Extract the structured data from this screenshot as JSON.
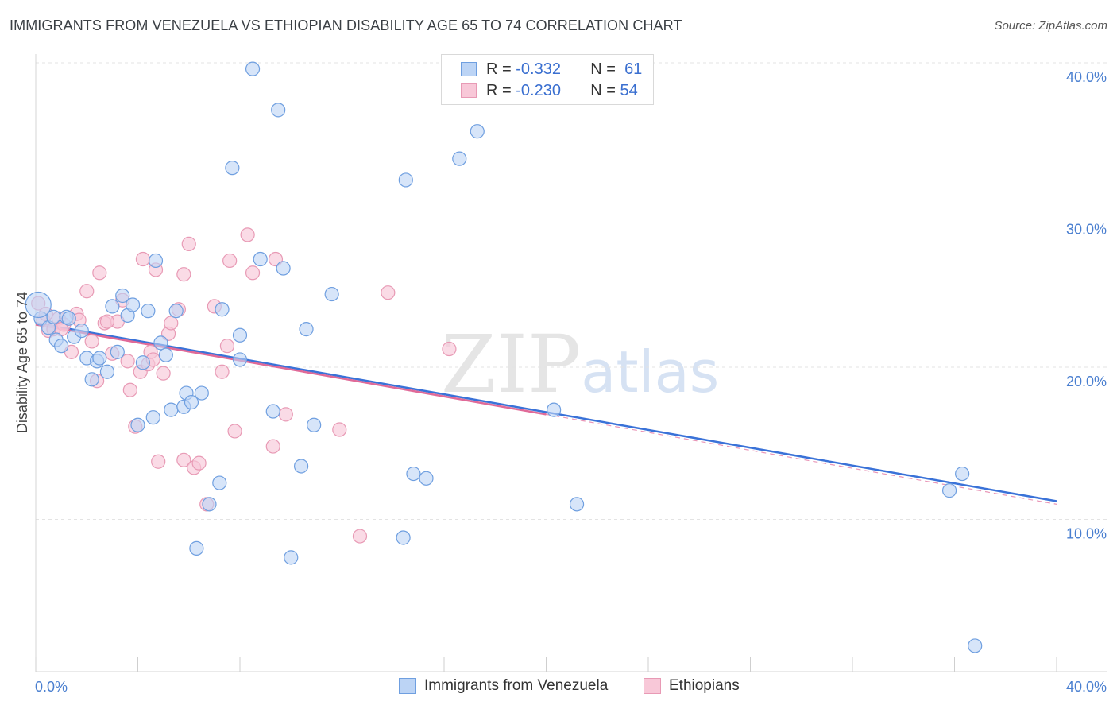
{
  "header": {
    "title": "IMMIGRANTS FROM VENEZUELA VS ETHIOPIAN DISABILITY AGE 65 TO 74 CORRELATION CHART",
    "source": "Source: ZipAtlas.com"
  },
  "watermark": {
    "zip": "ZIP",
    "atlas": "atlas"
  },
  "legend": {
    "series1": {
      "r_label": "R =",
      "r_value": "-0.332",
      "n_label": "N =",
      "n_value": "61"
    },
    "series2": {
      "r_label": "R =",
      "r_value": "-0.230",
      "n_label": "N =",
      "n_value": "54"
    }
  },
  "bottom_legend": {
    "series1": "Immigrants from Venezuela",
    "series2": "Ethiopians"
  },
  "colors": {
    "blue_fill": "#bcd4f5",
    "blue_stroke": "#6f9fe0",
    "blue_line": "#3a72d8",
    "pink_fill": "#f8c8d8",
    "pink_stroke": "#e89ab5",
    "pink_line": "#e06a98"
  },
  "chart_data": {
    "type": "scatter",
    "title": "IMMIGRANTS FROM VENEZUELA VS ETHIOPIAN DISABILITY AGE 65 TO 74 CORRELATION CHART",
    "xlabel": "",
    "ylabel": "Disability Age 65 to 74",
    "xlim": [
      0,
      40
    ],
    "ylim": [
      0,
      40
    ],
    "x_tick_labels": [
      "0.0%",
      "40.0%"
    ],
    "y_ticks": [
      10,
      20,
      30,
      40
    ],
    "y_tick_labels": [
      "10.0%",
      "20.0%",
      "30.0%",
      "40.0%"
    ],
    "grid": true,
    "series": [
      {
        "name": "Immigrants from Venezuela",
        "color": "#6f9fe0",
        "r": -0.332,
        "n": 61,
        "trend": {
          "x": [
            0,
            40
          ],
          "y": [
            22.9,
            11.2
          ]
        },
        "points": [
          [
            0.2,
            23.2
          ],
          [
            0.5,
            22.6
          ],
          [
            0.7,
            23.3
          ],
          [
            0.8,
            21.8
          ],
          [
            1.0,
            21.4
          ],
          [
            1.2,
            23.3
          ],
          [
            1.3,
            23.2
          ],
          [
            1.5,
            22.0
          ],
          [
            1.8,
            22.4
          ],
          [
            2.0,
            20.6
          ],
          [
            2.2,
            19.2
          ],
          [
            2.4,
            20.4
          ],
          [
            2.5,
            20.6
          ],
          [
            2.8,
            19.7
          ],
          [
            3.0,
            24.0
          ],
          [
            3.2,
            21.0
          ],
          [
            3.4,
            24.7
          ],
          [
            3.6,
            23.4
          ],
          [
            3.8,
            24.1
          ],
          [
            4.0,
            16.2
          ],
          [
            4.2,
            20.3
          ],
          [
            4.4,
            23.7
          ],
          [
            4.6,
            16.7
          ],
          [
            4.7,
            27.0
          ],
          [
            4.9,
            21.6
          ],
          [
            5.1,
            20.8
          ],
          [
            5.3,
            17.2
          ],
          [
            5.5,
            23.7
          ],
          [
            5.8,
            17.4
          ],
          [
            5.9,
            18.3
          ],
          [
            6.1,
            17.7
          ],
          [
            6.3,
            8.1
          ],
          [
            6.5,
            18.3
          ],
          [
            6.8,
            11.0
          ],
          [
            7.2,
            12.4
          ],
          [
            7.3,
            23.8
          ],
          [
            7.7,
            33.1
          ],
          [
            8.0,
            22.1
          ],
          [
            8.0,
            20.5
          ],
          [
            8.5,
            39.6
          ],
          [
            8.8,
            27.1
          ],
          [
            9.3,
            17.1
          ],
          [
            9.5,
            36.9
          ],
          [
            9.7,
            26.5
          ],
          [
            10.0,
            7.5
          ],
          [
            10.4,
            13.5
          ],
          [
            10.6,
            22.5
          ],
          [
            10.9,
            16.2
          ],
          [
            11.6,
            24.8
          ],
          [
            14.4,
            8.8
          ],
          [
            14.5,
            32.3
          ],
          [
            14.8,
            13.0
          ],
          [
            15.3,
            12.7
          ],
          [
            16.6,
            33.7
          ],
          [
            17.3,
            35.5
          ],
          [
            20.3,
            17.2
          ],
          [
            21.2,
            11.0
          ],
          [
            35.8,
            11.9
          ],
          [
            36.3,
            13.0
          ],
          [
            36.8,
            1.7
          ],
          [
            0.1,
            24.1
          ]
        ]
      },
      {
        "name": "Ethiopians",
        "color": "#e89ab5",
        "r": -0.23,
        "n": 54,
        "trend": {
          "x": [
            0,
            20
          ],
          "y": [
            22.8,
            16.9
          ]
        },
        "points": [
          [
            0.1,
            24.2
          ],
          [
            0.3,
            23.1
          ],
          [
            0.5,
            22.4
          ],
          [
            0.7,
            22.5
          ],
          [
            0.9,
            23.2
          ],
          [
            1.1,
            22.8
          ],
          [
            1.4,
            21.0
          ],
          [
            1.6,
            23.5
          ],
          [
            1.7,
            23.1
          ],
          [
            2.0,
            25.0
          ],
          [
            2.2,
            21.7
          ],
          [
            2.4,
            19.1
          ],
          [
            2.5,
            26.2
          ],
          [
            2.7,
            22.9
          ],
          [
            3.0,
            20.9
          ],
          [
            3.2,
            23.0
          ],
          [
            3.4,
            24.4
          ],
          [
            3.6,
            20.4
          ],
          [
            3.7,
            18.5
          ],
          [
            3.9,
            16.1
          ],
          [
            4.1,
            19.7
          ],
          [
            4.2,
            27.1
          ],
          [
            4.4,
            20.2
          ],
          [
            4.5,
            21.0
          ],
          [
            4.7,
            26.4
          ],
          [
            4.8,
            13.8
          ],
          [
            5.0,
            19.6
          ],
          [
            5.2,
            22.2
          ],
          [
            5.3,
            22.9
          ],
          [
            5.6,
            23.8
          ],
          [
            5.8,
            26.1
          ],
          [
            5.8,
            13.9
          ],
          [
            6.0,
            28.1
          ],
          [
            6.2,
            13.4
          ],
          [
            6.4,
            13.7
          ],
          [
            6.7,
            11.0
          ],
          [
            7.0,
            24.0
          ],
          [
            7.3,
            19.7
          ],
          [
            7.5,
            21.4
          ],
          [
            7.6,
            27.0
          ],
          [
            7.8,
            15.8
          ],
          [
            8.3,
            28.7
          ],
          [
            8.5,
            26.2
          ],
          [
            9.3,
            14.8
          ],
          [
            9.4,
            27.1
          ],
          [
            9.8,
            16.9
          ],
          [
            11.9,
            15.9
          ],
          [
            12.7,
            8.9
          ],
          [
            13.8,
            24.9
          ],
          [
            16.2,
            21.2
          ],
          [
            1.0,
            22.5
          ],
          [
            2.8,
            23.0
          ],
          [
            4.6,
            20.5
          ],
          [
            0.4,
            23.5
          ]
        ]
      }
    ]
  }
}
